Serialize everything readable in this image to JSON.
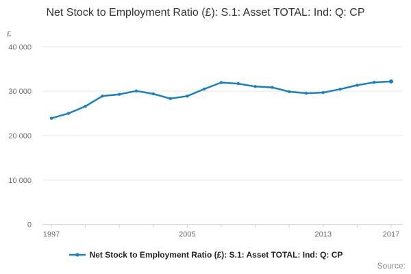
{
  "chart_data": {
    "type": "line",
    "title": "Net Stock to Employment Ratio (£): S.1: Asset TOTAL: Ind: Q: CP",
    "y_unit": "£",
    "series_name": "Net Stock to Employment Ratio (£): S.1: Asset TOTAL: Ind: Q: CP",
    "x": [
      1997,
      1998,
      1999,
      2000,
      2001,
      2002,
      2003,
      2004,
      2005,
      2006,
      2007,
      2008,
      2009,
      2010,
      2011,
      2012,
      2013,
      2014,
      2015,
      2016,
      2017
    ],
    "values": [
      23900,
      25000,
      26600,
      28900,
      29300,
      30050,
      29400,
      28350,
      28900,
      30500,
      31950,
      31700,
      31050,
      30850,
      29900,
      29550,
      29700,
      30450,
      31350,
      32000,
      32200
    ],
    "xlim": [
      1997,
      2017
    ],
    "ylim": [
      0,
      40000
    ],
    "y_ticks": [
      {
        "value": 0,
        "label": "0"
      },
      {
        "value": 10000,
        "label": "10 000"
      },
      {
        "value": 20000,
        "label": "20 000"
      },
      {
        "value": 30000,
        "label": "30 000"
      },
      {
        "value": 40000,
        "label": "40 000"
      }
    ],
    "x_tick_years": [
      1997,
      1999,
      2001,
      2003,
      2005,
      2007,
      2009,
      2011,
      2013,
      2015,
      2017
    ],
    "x_label_years": [
      1997,
      2005,
      2013,
      2017
    ],
    "grid": "horizontal",
    "legend_position": "bottom",
    "line_color": "#1681c7",
    "source_label": "Source:"
  }
}
